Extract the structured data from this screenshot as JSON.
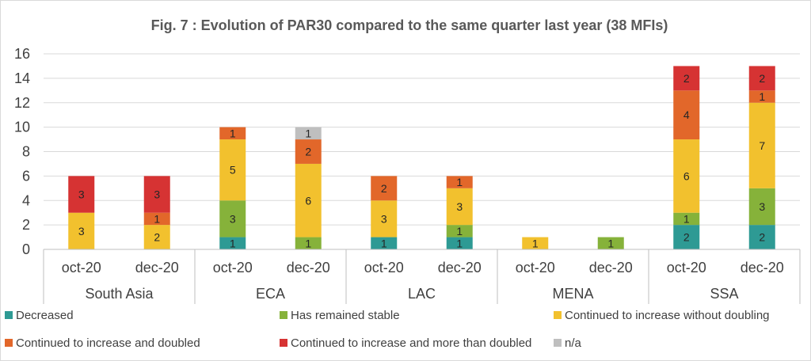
{
  "chart_data": {
    "type": "bar",
    "stacked": true,
    "title": "Fig. 7 : Evolution of PAR30 compared to the same quarter last year (38 MFIs)",
    "xlabel": "",
    "ylabel": "",
    "ylim": [
      0,
      16
    ],
    "yticks": [
      0,
      2,
      4,
      6,
      8,
      10,
      12,
      14,
      16
    ],
    "grid": true,
    "legend_position": "bottom",
    "groups": [
      {
        "name": "South Asia",
        "categories": [
          "oct-20",
          "dec-20"
        ]
      },
      {
        "name": "ECA",
        "categories": [
          "oct-20",
          "dec-20"
        ]
      },
      {
        "name": "LAC",
        "categories": [
          "oct-20",
          "dec-20"
        ]
      },
      {
        "name": "MENA",
        "categories": [
          "oct-20",
          "dec-20"
        ]
      },
      {
        "name": "SSA",
        "categories": [
          "oct-20",
          "dec-20"
        ]
      }
    ],
    "categories": [
      "oct-20",
      "dec-20",
      "oct-20",
      "dec-20",
      "oct-20",
      "dec-20",
      "oct-20",
      "dec-20",
      "oct-20",
      "dec-20"
    ],
    "series": [
      {
        "name": "Decreased",
        "color": "#2e9a94",
        "values": [
          0,
          0,
          1,
          0,
          1,
          1,
          0,
          0,
          2,
          2
        ]
      },
      {
        "name": "Has remained stable",
        "color": "#86b23a",
        "values": [
          0,
          0,
          3,
          1,
          0,
          1,
          0,
          1,
          1,
          3
        ]
      },
      {
        "name": "Continued to increase without doubling",
        "color": "#f2c12e",
        "values": [
          3,
          2,
          5,
          6,
          3,
          3,
          1,
          0,
          6,
          7
        ]
      },
      {
        "name": "Continued to increase and doubled",
        "color": "#e2672a",
        "values": [
          0,
          1,
          1,
          2,
          2,
          1,
          0,
          0,
          4,
          1
        ]
      },
      {
        "name": "Continued to increase and more than doubled",
        "color": "#d63333",
        "values": [
          3,
          3,
          0,
          0,
          0,
          0,
          0,
          0,
          2,
          2
        ]
      },
      {
        "name": "n/a",
        "color": "#bfbfbf",
        "values": [
          0,
          0,
          0,
          1,
          0,
          0,
          0,
          0,
          0,
          0
        ]
      }
    ]
  }
}
